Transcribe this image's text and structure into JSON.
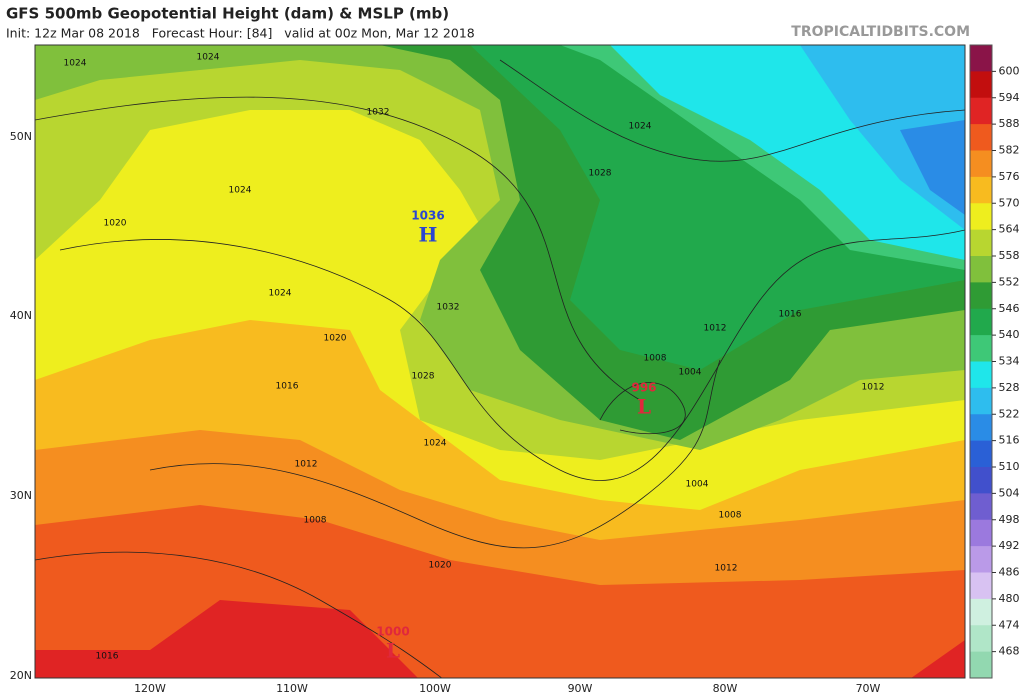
{
  "header": {
    "title": "GFS 500mb Geopotential Height (dam) & MSLP (mb)",
    "subtitle": "Init: 12z Mar 08 2018   Forecast Hour: [84]   valid at 00z Mon, Mar 12 2018",
    "site": "TROPICALTIDBITS.COM"
  },
  "colorbar": {
    "labels": [
      "600",
      "594",
      "588",
      "582",
      "576",
      "570",
      "564",
      "558",
      "552",
      "546",
      "540",
      "534",
      "528",
      "522",
      "516",
      "510",
      "504",
      "498",
      "492",
      "486",
      "480",
      "474",
      "468"
    ],
    "colors": [
      "#8a1448",
      "#c20e0e",
      "#e02424",
      "#ef5a1e",
      "#f58e20",
      "#f8bb1f",
      "#eeee1e",
      "#b8d630",
      "#80c03c",
      "#2f9b34",
      "#21a94c",
      "#3ec877",
      "#1fe6ea",
      "#2ebdee",
      "#2a8ce6",
      "#2a60d6",
      "#4150cc",
      "#6f5ed0",
      "#9b79de",
      "#ba9ae8",
      "#d8c2f2",
      "#cff0e0",
      "#b0e6c8",
      "#92d8b0"
    ]
  },
  "latitudes": [
    "50N",
    "40N",
    "30N",
    "20N"
  ],
  "longitudes": [
    "120W",
    "110W",
    "100W",
    "90W",
    "80W",
    "70W"
  ],
  "systems": [
    {
      "letter": "H",
      "value": "1036"
    },
    {
      "letter": "L",
      "value": "996"
    },
    {
      "letter": "L",
      "value": "1000"
    }
  ],
  "isobar_labels": [
    "1024",
    "1024",
    "1024",
    "1024",
    "1024",
    "1020",
    "1020",
    "1020",
    "1032",
    "1032",
    "1028",
    "1028",
    "1016",
    "1016",
    "1016",
    "1012",
    "1012",
    "1012",
    "1012",
    "1008",
    "1008",
    "1008",
    "1004",
    "1004",
    "1024"
  ]
}
